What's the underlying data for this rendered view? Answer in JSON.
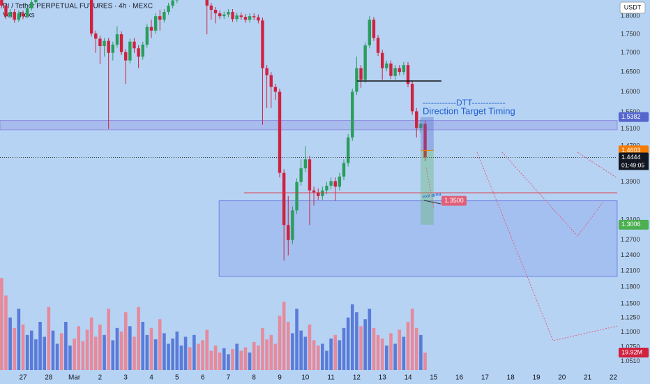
{
  "chart_data": {
    "type": "candlestick",
    "title": "PI / Tether PERPETUAL FUTURES · 4h · MEXC",
    "subtitle": "Vol · Ticks",
    "y_axis_unit": "USDT",
    "log_scale": true,
    "grid": false,
    "colors": {
      "up": "#2a9d5c",
      "down": "#d0213e",
      "volume_up": "#5a7bd8",
      "volume_down": "#e68a9c",
      "background": "#b6d3f4"
    },
    "ylim": [
      1.037,
      1.846
    ],
    "yticks": [
      {
        "value": 1.8,
        "label": "1.8000"
      },
      {
        "value": 1.75,
        "label": "1.7500"
      },
      {
        "value": 1.7,
        "label": "1.7000"
      },
      {
        "value": 1.65,
        "label": "1.6500"
      },
      {
        "value": 1.6,
        "label": "1.6000"
      },
      {
        "value": 1.55,
        "label": "1.5500"
      },
      {
        "value": 1.51,
        "label": "1.5100"
      },
      {
        "value": 1.47,
        "label": "1.4700"
      },
      {
        "value": 1.39,
        "label": "1.3900"
      },
      {
        "value": 1.31,
        "label": "1.3100"
      },
      {
        "value": 1.27,
        "label": "1.2700"
      },
      {
        "value": 1.24,
        "label": "1.2400"
      },
      {
        "value": 1.21,
        "label": "1.2100"
      },
      {
        "value": 1.18,
        "label": "1.1800"
      },
      {
        "value": 1.15,
        "label": "1.1500"
      },
      {
        "value": 1.125,
        "label": "1.1250"
      },
      {
        "value": 1.1,
        "label": "1.1000"
      },
      {
        "value": 1.075,
        "label": "1.0750"
      },
      {
        "value": 1.051,
        "label": "1.0510"
      }
    ],
    "xlim": [
      -0.897,
      23.152
    ],
    "xticks": [
      {
        "value": 0,
        "label": "27"
      },
      {
        "value": 1,
        "label": "28"
      },
      {
        "value": 2,
        "label": "Mar"
      },
      {
        "value": 3,
        "label": "2"
      },
      {
        "value": 4,
        "label": "3"
      },
      {
        "value": 5,
        "label": "4"
      },
      {
        "value": 6,
        "label": "5"
      },
      {
        "value": 7,
        "label": "6"
      },
      {
        "value": 8,
        "label": "7"
      },
      {
        "value": 9,
        "label": "8"
      },
      {
        "value": 10,
        "label": "9"
      },
      {
        "value": 11,
        "label": "10"
      },
      {
        "value": 12,
        "label": "11"
      },
      {
        "value": 13,
        "label": "12"
      },
      {
        "value": 14,
        "label": "13"
      },
      {
        "value": 15,
        "label": "14"
      },
      {
        "value": 16,
        "label": "15"
      },
      {
        "value": 17,
        "label": "16"
      },
      {
        "value": 18,
        "label": "17"
      },
      {
        "value": 19,
        "label": "18"
      },
      {
        "value": 20,
        "label": "19"
      },
      {
        "value": 21,
        "label": "20"
      },
      {
        "value": 22,
        "label": "21"
      },
      {
        "value": 23,
        "label": "22"
      }
    ],
    "x": [
      -0.833,
      -0.667,
      -0.5,
      -0.333,
      -0.167,
      0,
      0.167,
      0.333,
      0.5,
      0.667,
      0.833,
      1,
      1.167,
      1.333,
      1.5,
      1.667,
      1.833,
      2,
      2.167,
      2.333,
      2.5,
      2.667,
      2.833,
      3,
      3.167,
      3.333,
      3.5,
      3.667,
      3.833,
      4,
      4.167,
      4.333,
      4.5,
      4.667,
      4.833,
      5,
      5.167,
      5.333,
      5.5,
      5.667,
      5.833,
      6,
      6.167,
      6.333,
      6.5,
      6.667,
      6.833,
      7,
      7.167,
      7.333,
      7.5,
      7.667,
      7.833,
      8,
      8.167,
      8.333,
      8.5,
      8.667,
      8.833,
      9,
      9.167,
      9.333,
      9.5,
      9.667,
      9.833,
      10,
      10.167,
      10.333,
      10.5,
      10.667,
      10.833,
      11,
      11.167,
      11.333,
      11.5,
      11.667,
      11.833,
      12,
      12.167,
      12.333,
      12.5,
      12.667,
      12.833,
      13,
      13.167,
      13.333,
      13.5,
      13.667,
      13.833,
      14,
      14.167,
      14.333,
      14.5,
      14.667,
      14.833,
      15,
      15.167,
      15.333,
      15.5,
      15.667
    ],
    "open": [
      1.85,
      1.83,
      1.8,
      1.812,
      1.79,
      1.808,
      1.8,
      1.822,
      1.84,
      1.858,
      1.87,
      1.88,
      1.872,
      1.885,
      1.89,
      1.878,
      1.884,
      1.892,
      1.88,
      1.875,
      1.868,
      1.862,
      1.752,
      1.738,
      1.718,
      1.732,
      1.7,
      1.722,
      1.75,
      1.702,
      1.68,
      1.73,
      1.712,
      1.69,
      1.722,
      1.77,
      1.76,
      1.8,
      1.79,
      1.812,
      1.83,
      1.845,
      1.862,
      1.875,
      1.89,
      1.882,
      1.895,
      1.88,
      1.86,
      1.83,
      1.818,
      1.808,
      1.8,
      1.805,
      1.812,
      1.792,
      1.802,
      1.798,
      1.79,
      1.8,
      1.797,
      1.788,
      1.66,
      1.642,
      1.612,
      1.6,
      1.41,
      1.3,
      1.27,
      1.33,
      1.39,
      1.42,
      1.44,
      1.372,
      1.368,
      1.36,
      1.372,
      1.382,
      1.392,
      1.38,
      1.402,
      1.432,
      1.49,
      1.6,
      1.66,
      1.63,
      1.72,
      1.79,
      1.74,
      1.7,
      1.66,
      1.672,
      1.64,
      1.66,
      1.65,
      1.668,
      1.62,
      1.552,
      1.512,
      1.522
    ],
    "high": [
      1.858,
      1.838,
      1.82,
      1.82,
      1.816,
      1.816,
      1.83,
      1.848,
      1.866,
      1.878,
      1.888,
      1.888,
      1.893,
      1.898,
      1.898,
      1.892,
      1.9,
      1.9,
      1.888,
      1.883,
      1.876,
      1.87,
      1.76,
      1.746,
      1.74,
      1.74,
      1.73,
      1.772,
      1.758,
      1.71,
      1.738,
      1.74,
      1.72,
      1.73,
      1.778,
      1.79,
      1.808,
      1.818,
      1.82,
      1.838,
      1.853,
      1.87,
      1.883,
      1.898,
      1.898,
      1.903,
      1.903,
      1.888,
      1.868,
      1.838,
      1.826,
      1.816,
      1.813,
      1.82,
      1.82,
      1.81,
      1.81,
      1.806,
      1.808,
      1.808,
      1.805,
      1.796,
      1.668,
      1.65,
      1.62,
      1.608,
      1.418,
      1.36,
      1.338,
      1.398,
      1.44,
      1.47,
      1.448,
      1.38,
      1.376,
      1.38,
      1.39,
      1.4,
      1.4,
      1.41,
      1.44,
      1.498,
      1.608,
      1.69,
      1.668,
      1.728,
      1.8,
      1.798,
      1.748,
      1.708,
      1.68,
      1.68,
      1.668,
      1.668,
      1.676,
      1.676,
      1.628,
      1.56,
      1.532,
      1.53
    ],
    "low": [
      1.822,
      1.792,
      1.794,
      1.782,
      1.784,
      1.792,
      1.794,
      1.816,
      1.834,
      1.852,
      1.864,
      1.864,
      1.866,
      1.879,
      1.87,
      1.872,
      1.878,
      1.872,
      1.867,
      1.86,
      1.854,
      1.744,
      1.7,
      1.67,
      1.69,
      1.51,
      1.68,
      1.714,
      1.694,
      1.62,
      1.672,
      1.7,
      1.66,
      1.682,
      1.714,
      1.74,
      1.752,
      1.76,
      1.782,
      1.804,
      1.822,
      1.837,
      1.854,
      1.867,
      1.874,
      1.874,
      1.872,
      1.852,
      1.75,
      1.79,
      1.78,
      1.792,
      1.792,
      1.797,
      1.784,
      1.784,
      1.79,
      1.782,
      1.782,
      1.789,
      1.78,
      1.52,
      1.56,
      1.56,
      1.58,
      1.4,
      1.23,
      1.24,
      1.262,
      1.322,
      1.382,
      1.412,
      1.3,
      1.34,
      1.352,
      1.352,
      1.364,
      1.374,
      1.35,
      1.372,
      1.394,
      1.424,
      1.482,
      1.592,
      1.61,
      1.622,
      1.712,
      1.732,
      1.692,
      1.63,
      1.652,
      1.632,
      1.63,
      1.642,
      1.642,
      1.612,
      1.544,
      1.49,
      1.5,
      1.436
    ],
    "close": [
      1.83,
      1.8,
      1.812,
      1.79,
      1.808,
      1.8,
      1.822,
      1.84,
      1.858,
      1.87,
      1.88,
      1.872,
      1.885,
      1.89,
      1.878,
      1.884,
      1.892,
      1.88,
      1.875,
      1.868,
      1.862,
      1.752,
      1.738,
      1.718,
      1.732,
      1.7,
      1.722,
      1.75,
      1.702,
      1.68,
      1.73,
      1.712,
      1.69,
      1.722,
      1.77,
      1.76,
      1.8,
      1.79,
      1.812,
      1.83,
      1.845,
      1.862,
      1.875,
      1.89,
      1.882,
      1.895,
      1.88,
      1.86,
      1.83,
      1.818,
      1.808,
      1.8,
      1.805,
      1.812,
      1.792,
      1.802,
      1.798,
      1.79,
      1.8,
      1.797,
      1.788,
      1.66,
      1.642,
      1.612,
      1.6,
      1.41,
      1.3,
      1.27,
      1.33,
      1.39,
      1.42,
      1.44,
      1.372,
      1.368,
      1.36,
      1.372,
      1.382,
      1.392,
      1.38,
      1.402,
      1.432,
      1.49,
      1.6,
      1.66,
      1.63,
      1.72,
      1.79,
      1.74,
      1.7,
      1.66,
      1.672,
      1.64,
      1.66,
      1.65,
      1.668,
      1.62,
      1.552,
      1.512,
      1.522,
      1.4444
    ],
    "volume": [
      105,
      85,
      60,
      48,
      70,
      52,
      40,
      45,
      35,
      55,
      38,
      72,
      45,
      30,
      42,
      55,
      28,
      36,
      50,
      33,
      46,
      60,
      38,
      52,
      40,
      70,
      34,
      48,
      44,
      66,
      50,
      38,
      72,
      55,
      40,
      48,
      35,
      58,
      42,
      30,
      36,
      44,
      28,
      38,
      26,
      40,
      30,
      34,
      46,
      22,
      28,
      20,
      25,
      18,
      24,
      30,
      22,
      26,
      20,
      32,
      28,
      48,
      35,
      40,
      30,
      62,
      78,
      55,
      42,
      70,
      45,
      38,
      52,
      34,
      28,
      30,
      22,
      36,
      40,
      34,
      48,
      60,
      75,
      66,
      50,
      58,
      70,
      48,
      40,
      36,
      28,
      42,
      30,
      46,
      38,
      55,
      70,
      48,
      40,
      19.92
    ],
    "volume_ylim": [
      0,
      110
    ],
    "volume_last_label": "19.92M",
    "countdown": "01:49:05",
    "zones": {
      "resistance_band": {
        "y": [
          1.508,
          1.53
        ],
        "color": "#8f8fe0"
      },
      "target_box": {
        "x": [
          7.64,
          23.15
        ],
        "y": [
          1.2,
          1.35
        ],
        "color": "#8fa8ec"
      },
      "red_line": {
        "x": [
          8.61,
          23.15
        ],
        "value": 1.367,
        "color": "#e0303c"
      },
      "black_line": {
        "x": [
          13.02,
          16.3
        ],
        "value": 1.627,
        "color": "#111111"
      }
    },
    "position": {
      "x": [
        15.49,
        16.0
      ],
      "stop": 1.5382,
      "entry": 1.4603,
      "target": 1.3006,
      "stop_color": "#5566cc",
      "entry_color": "#f57c00",
      "target_color": "#4caf50"
    },
    "exit_price": {
      "value": 1.35,
      "label": "1.3500",
      "color": "#e0607a"
    },
    "annotations": {
      "dtt_line": "------------DTT------------",
      "dtt_text": "Direction Target Timing",
      "exit_label": "exit area"
    }
  }
}
